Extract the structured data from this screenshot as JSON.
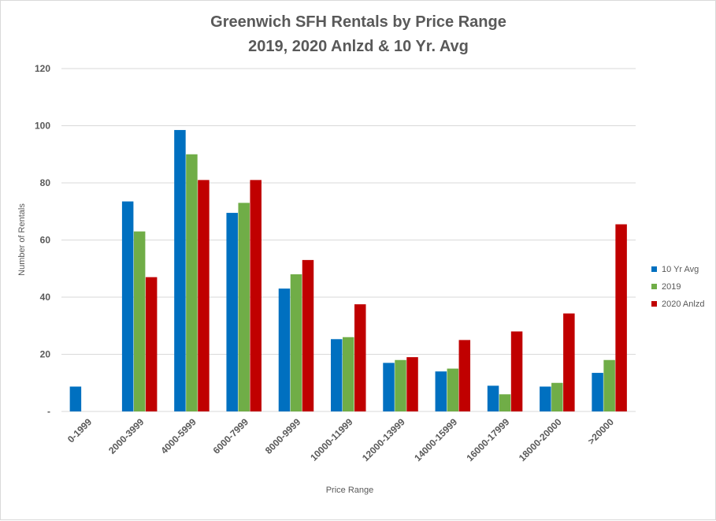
{
  "chart_data": {
    "type": "bar",
    "title": "Greenwich SFH Rentals by Price Range",
    "subtitle": "2019, 2020 Anlzd & 10 Yr. Avg",
    "xlabel": "Price Range",
    "ylabel": "Number of Rentals",
    "ylim": [
      0,
      120
    ],
    "yticks": [
      0,
      20,
      40,
      60,
      80,
      100,
      120
    ],
    "ytick_labels": [
      "-",
      "20",
      "40",
      "60",
      "80",
      "100",
      "120"
    ],
    "grid": true,
    "legend_position": "right",
    "categories": [
      "0-1999",
      "2000-3999",
      "4000-5999",
      "6000-7999",
      "8000-9999",
      "10000-11999",
      "12000-13999",
      "14000-15999",
      "16000-17999",
      "18000-20000",
      ">20000"
    ],
    "series": [
      {
        "name": "10 Yr Avg",
        "color": "#0070c0",
        "values": [
          8.7,
          73.5,
          98.5,
          69.5,
          43,
          25.3,
          17,
          14,
          9,
          8.7,
          13.5
        ]
      },
      {
        "name": "2019",
        "color": "#70ad47",
        "values": [
          0,
          63,
          90,
          73,
          48,
          26,
          18,
          15,
          6,
          10,
          18
        ]
      },
      {
        "name": "2020 Anlzd",
        "color": "#c00000",
        "values": [
          0,
          47,
          81,
          81,
          53,
          37.5,
          19,
          25,
          28,
          34.3,
          65.5
        ]
      }
    ]
  }
}
